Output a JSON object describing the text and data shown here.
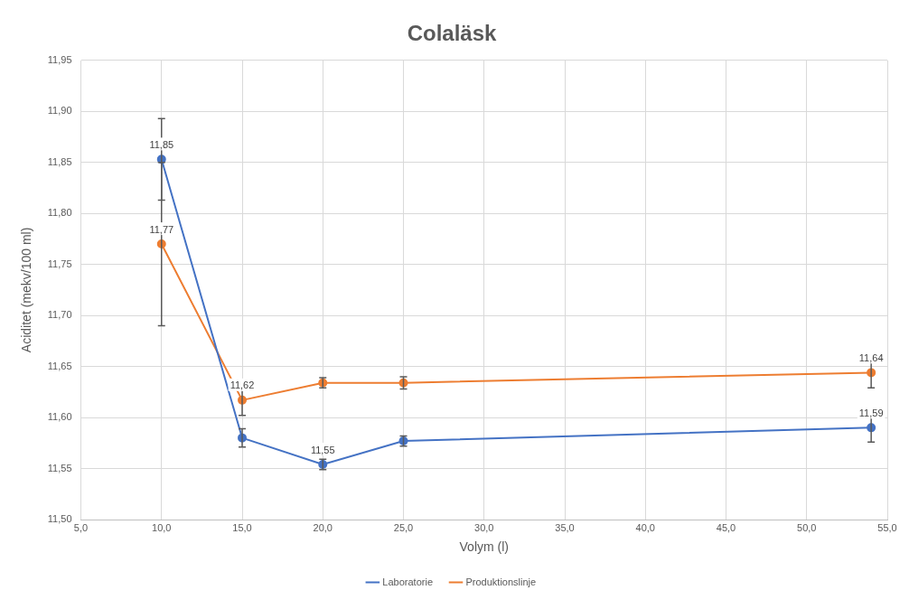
{
  "chart_data": {
    "type": "line",
    "title": "Colaläsk",
    "xlabel": "Volym (l)",
    "ylabel": "Aciditet (mekv/100 ml)",
    "x": [
      10,
      15,
      20,
      25,
      54
    ],
    "series": [
      {
        "name": "Laboratorie",
        "color": "#4472c4",
        "values": [
          11.853,
          11.58,
          11.554,
          11.577,
          11.59
        ],
        "errors": [
          0.04,
          0.009,
          0.005,
          0.005,
          0.014
        ],
        "value_labels": [
          "11,85",
          null,
          "11,55",
          null,
          "11,59"
        ]
      },
      {
        "name": "Produktionslinje",
        "color": "#ed7d31",
        "values": [
          11.77,
          11.617,
          11.634,
          11.634,
          11.644
        ],
        "errors": [
          0.08,
          0.015,
          0.005,
          0.006,
          0.015
        ],
        "value_labels": [
          "11,77",
          "11,62",
          null,
          null,
          "11,64"
        ]
      }
    ],
    "xlim": [
      5,
      55
    ],
    "xticks": [
      {
        "value": 5,
        "label": "5,0"
      },
      {
        "value": 10,
        "label": "10,0"
      },
      {
        "value": 15,
        "label": "15,0"
      },
      {
        "value": 20,
        "label": "20,0"
      },
      {
        "value": 25,
        "label": "25,0"
      },
      {
        "value": 30,
        "label": "30,0"
      },
      {
        "value": 35,
        "label": "35,0"
      },
      {
        "value": 40,
        "label": "40,0"
      },
      {
        "value": 45,
        "label": "45,0"
      },
      {
        "value": 50,
        "label": "50,0"
      },
      {
        "value": 55,
        "label": "55,0"
      }
    ],
    "ylim": [
      11.5,
      11.95
    ],
    "yticks": [
      {
        "value": 11.5,
        "label": "11,50"
      },
      {
        "value": 11.55,
        "label": "11,55"
      },
      {
        "value": 11.6,
        "label": "11,60"
      },
      {
        "value": 11.65,
        "label": "11,65"
      },
      {
        "value": 11.7,
        "label": "11,70"
      },
      {
        "value": 11.75,
        "label": "11,75"
      },
      {
        "value": 11.8,
        "label": "11,80"
      },
      {
        "value": 11.85,
        "label": "11,85"
      },
      {
        "value": 11.9,
        "label": "11,90"
      },
      {
        "value": 11.95,
        "label": "11,95"
      }
    ],
    "grid": true,
    "legend": "bottom",
    "marker": "circle",
    "line_style": "solid"
  }
}
